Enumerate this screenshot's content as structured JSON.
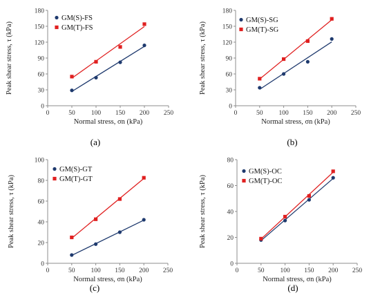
{
  "chart_data": [
    {
      "type": "scatter",
      "panel_label": "(a)",
      "xlabel": "Normal stress, σn (kPa)",
      "ylabel": "Peak shear stress, τ (kPa)",
      "xlim": [
        0,
        250
      ],
      "xticks": [
        0,
        50,
        100,
        150,
        200,
        250
      ],
      "ylim": [
        0,
        180
      ],
      "yticks": [
        0,
        30,
        60,
        90,
        120,
        150,
        180
      ],
      "grid": false,
      "legend_position": "top-left",
      "trendline": "linear",
      "series": [
        {
          "name": "GM(S)-FS",
          "color": "#1f3a6e",
          "marker": "circle",
          "x": [
            50,
            100,
            150,
            200
          ],
          "y": [
            29,
            53,
            82,
            114
          ]
        },
        {
          "name": "GM(T)-FS",
          "color": "#e02020",
          "marker": "square",
          "x": [
            50,
            100,
            150,
            200
          ],
          "y": [
            55,
            83,
            111,
            154
          ]
        }
      ]
    },
    {
      "type": "scatter",
      "panel_label": "(b)",
      "xlabel": "Normal stress, σn (kPa)",
      "ylabel": "Peak shear stress, τ (kPa)",
      "xlim": [
        0,
        250
      ],
      "xticks": [
        0,
        50,
        100,
        150,
        200,
        250
      ],
      "ylim": [
        0,
        180
      ],
      "yticks": [
        0,
        30,
        60,
        90,
        120,
        150,
        180
      ],
      "grid": false,
      "legend_position": "top-left",
      "trendline": "linear",
      "series": [
        {
          "name": "GM(S)-SG",
          "color": "#1f3a6e",
          "marker": "circle",
          "x": [
            50,
            100,
            150,
            200
          ],
          "y": [
            34,
            60,
            83,
            126
          ]
        },
        {
          "name": "GM(T)-SG",
          "color": "#e02020",
          "marker": "square",
          "x": [
            50,
            100,
            150,
            200
          ],
          "y": [
            51,
            88,
            122,
            164
          ]
        }
      ]
    },
    {
      "type": "scatter",
      "panel_label": "(c)",
      "xlabel": "Normal stress, σn (kPa)",
      "ylabel": "Peak shear stress, τ (kPa)",
      "xlim": [
        0,
        250
      ],
      "xticks": [
        0,
        50,
        100,
        150,
        200,
        250
      ],
      "ylim": [
        0,
        100
      ],
      "yticks": [
        0,
        20,
        40,
        60,
        80,
        100
      ],
      "grid": false,
      "legend_position": "top-left",
      "trendline": "linear",
      "series": [
        {
          "name": "GM(S)-GT",
          "color": "#1f3a6e",
          "marker": "circle",
          "x": [
            50,
            100,
            150,
            200
          ],
          "y": [
            8,
            18.5,
            30,
            42
          ]
        },
        {
          "name": "GM(T)-GT",
          "color": "#e02020",
          "marker": "square",
          "x": [
            50,
            100,
            150,
            200
          ],
          "y": [
            25,
            42.5,
            62,
            82.5
          ]
        }
      ]
    },
    {
      "type": "scatter",
      "panel_label": "(d)",
      "xlabel": "Normal stress, σn (kPa)",
      "ylabel": "Peak shear stress, τ (kPa)",
      "xlim": [
        0,
        250
      ],
      "xticks": [
        0,
        50,
        100,
        150,
        200,
        250
      ],
      "ylim": [
        0,
        80
      ],
      "yticks": [
        0,
        20,
        40,
        60,
        80
      ],
      "grid": false,
      "legend_position": "top-left",
      "trendline": "linear",
      "series": [
        {
          "name": "GM(S)-OC",
          "color": "#1f3a6e",
          "marker": "circle",
          "x": [
            50,
            100,
            150,
            200
          ],
          "y": [
            18,
            33,
            49,
            66
          ]
        },
        {
          "name": "GM(T)-OC",
          "color": "#e02020",
          "marker": "square",
          "x": [
            50,
            100,
            150,
            200
          ],
          "y": [
            19,
            36,
            52,
            71
          ]
        }
      ]
    }
  ]
}
